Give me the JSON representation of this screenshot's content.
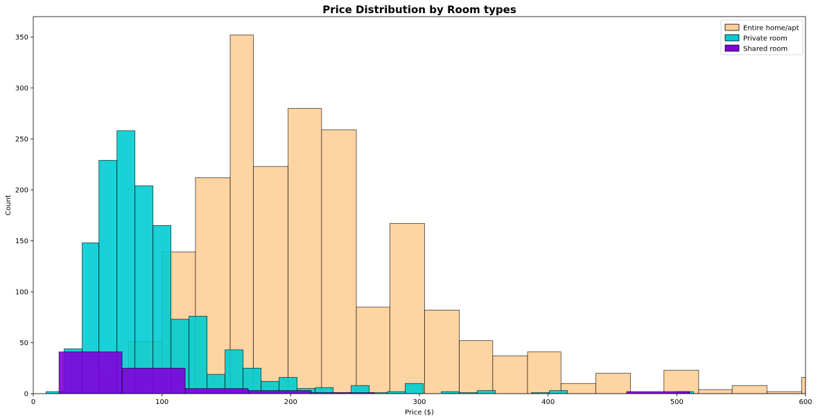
{
  "chart_data": {
    "type": "bar",
    "subtype": "overlapping-histogram",
    "title": "Price Distribution by Room types",
    "xlabel": "Price ($)",
    "ylabel": "Count",
    "xlim": [
      0,
      600
    ],
    "ylim": [
      0,
      370
    ],
    "x_ticks": [
      0,
      100,
      200,
      300,
      400,
      500,
      600
    ],
    "y_ticks": [
      0,
      50,
      100,
      150,
      200,
      250,
      300,
      350
    ],
    "grid": false,
    "legend_position": "top-right",
    "series": [
      {
        "name": "Entire home/apt",
        "color": "#ffcf99",
        "edge": "#000000",
        "bins": [
          {
            "x0": 20,
            "x1": 47,
            "count": 2
          },
          {
            "x0": 47,
            "x1": 74,
            "count": 20
          },
          {
            "x0": 74,
            "x1": 100,
            "count": 51
          },
          {
            "x0": 100,
            "x1": 126,
            "count": 139
          },
          {
            "x0": 126,
            "x1": 153,
            "count": 212
          },
          {
            "x0": 153,
            "x1": 171,
            "count": 352
          },
          {
            "x0": 171,
            "x1": 198,
            "count": 223
          },
          {
            "x0": 198,
            "x1": 224,
            "count": 280
          },
          {
            "x0": 224,
            "x1": 251,
            "count": 259
          },
          {
            "x0": 251,
            "x1": 277,
            "count": 85
          },
          {
            "x0": 277,
            "x1": 304,
            "count": 167
          },
          {
            "x0": 304,
            "x1": 331,
            "count": 82
          },
          {
            "x0": 331,
            "x1": 357,
            "count": 52
          },
          {
            "x0": 357,
            "x1": 384,
            "count": 37
          },
          {
            "x0": 384,
            "x1": 410,
            "count": 41
          },
          {
            "x0": 410,
            "x1": 437,
            "count": 10
          },
          {
            "x0": 437,
            "x1": 464,
            "count": 20
          },
          {
            "x0": 464,
            "x1": 490,
            "count": 0
          },
          {
            "x0": 490,
            "x1": 517,
            "count": 23
          },
          {
            "x0": 517,
            "x1": 543,
            "count": 4
          },
          {
            "x0": 543,
            "x1": 570,
            "count": 8
          },
          {
            "x0": 570,
            "x1": 597,
            "count": 2
          },
          {
            "x0": 597,
            "x1": 600,
            "count": 16
          }
        ]
      },
      {
        "name": "Private room",
        "color": "#00ccd1",
        "edge": "#000000",
        "bins": [
          {
            "x0": 10,
            "x1": 24,
            "count": 2
          },
          {
            "x0": 24,
            "x1": 38,
            "count": 44
          },
          {
            "x0": 38,
            "x1": 51,
            "count": 148
          },
          {
            "x0": 51,
            "x1": 65,
            "count": 229
          },
          {
            "x0": 65,
            "x1": 79,
            "count": 258
          },
          {
            "x0": 79,
            "x1": 93,
            "count": 204
          },
          {
            "x0": 93,
            "x1": 107,
            "count": 165
          },
          {
            "x0": 107,
            "x1": 121,
            "count": 73
          },
          {
            "x0": 121,
            "x1": 135,
            "count": 76
          },
          {
            "x0": 135,
            "x1": 149,
            "count": 19
          },
          {
            "x0": 149,
            "x1": 163,
            "count": 43
          },
          {
            "x0": 163,
            "x1": 177,
            "count": 25
          },
          {
            "x0": 177,
            "x1": 191,
            "count": 12
          },
          {
            "x0": 191,
            "x1": 205,
            "count": 16
          },
          {
            "x0": 205,
            "x1": 219,
            "count": 5
          },
          {
            "x0": 219,
            "x1": 233,
            "count": 6
          },
          {
            "x0": 233,
            "x1": 247,
            "count": 1
          },
          {
            "x0": 247,
            "x1": 261,
            "count": 8
          },
          {
            "x0": 261,
            "x1": 275,
            "count": 1
          },
          {
            "x0": 275,
            "x1": 289,
            "count": 2
          },
          {
            "x0": 289,
            "x1": 303,
            "count": 10
          },
          {
            "x0": 317,
            "x1": 331,
            "count": 2
          },
          {
            "x0": 331,
            "x1": 345,
            "count": 1
          },
          {
            "x0": 345,
            "x1": 359,
            "count": 3
          },
          {
            "x0": 387,
            "x1": 401,
            "count": 1
          },
          {
            "x0": 401,
            "x1": 415,
            "count": 3
          },
          {
            "x0": 499,
            "x1": 513,
            "count": 2
          }
        ]
      },
      {
        "name": "Shared room",
        "color": "#8000d9",
        "edge": "#000000",
        "bins": [
          {
            "x0": 20,
            "x1": 69,
            "count": 41
          },
          {
            "x0": 69,
            "x1": 118,
            "count": 25
          },
          {
            "x0": 118,
            "x1": 167,
            "count": 5
          },
          {
            "x0": 167,
            "x1": 216,
            "count": 3
          },
          {
            "x0": 216,
            "x1": 265,
            "count": 1
          },
          {
            "x0": 461,
            "x1": 510,
            "count": 2
          }
        ]
      }
    ]
  }
}
